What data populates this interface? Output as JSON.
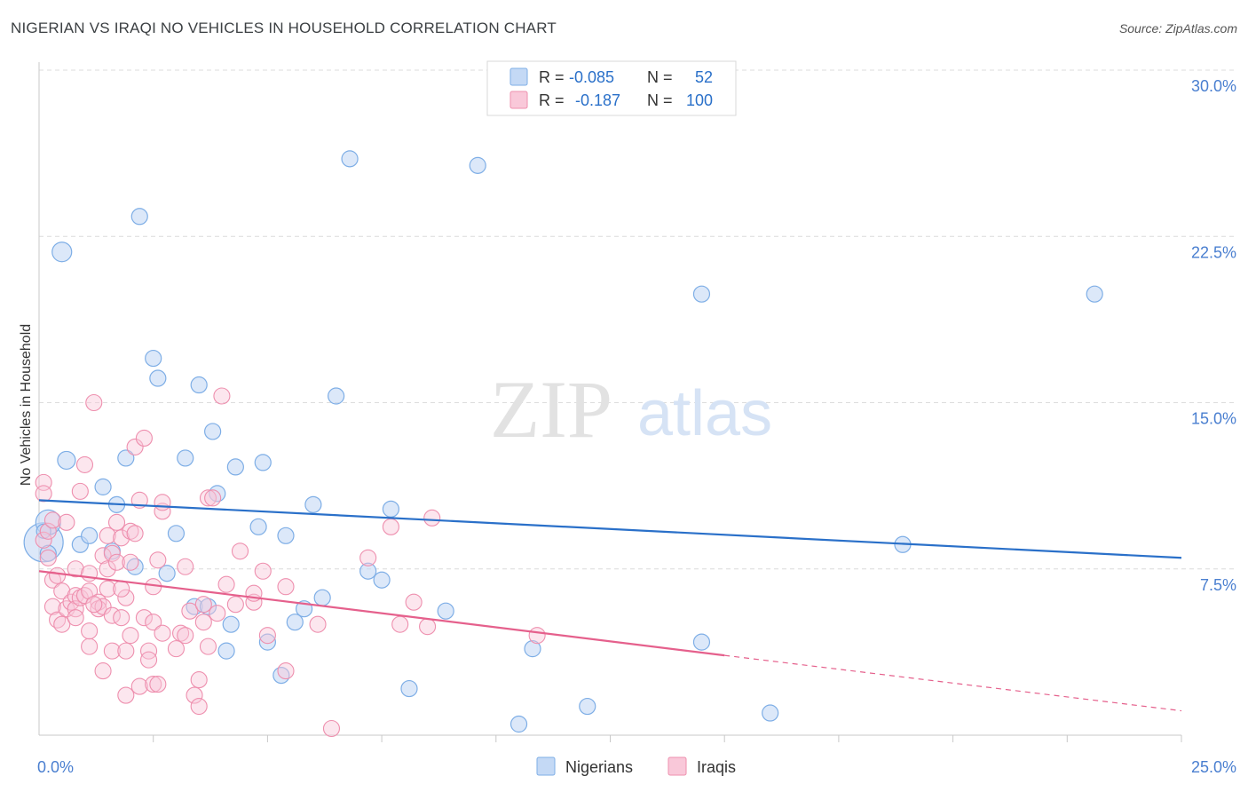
{
  "title": "NIGERIAN VS IRAQI NO VEHICLES IN HOUSEHOLD CORRELATION CHART",
  "source": "Source: ZipAtlas.com",
  "watermark": {
    "zip": "ZIP",
    "atlas": "atlas"
  },
  "colors": {
    "blue": "#7eaee6",
    "blue_fill": "#c4d9f5",
    "blue_line": "#2a70c9",
    "pink": "#ee8fae",
    "pink_fill": "#f9c8d9",
    "pink_line": "#e5608c",
    "tick_text": "#4a7fd0",
    "grid": "#dcdcdc"
  },
  "chart_data": {
    "type": "scatter",
    "title": "NIGERIAN VS IRAQI NO VEHICLES IN HOUSEHOLD CORRELATION CHART",
    "xlabel": "",
    "ylabel": "No Vehicles in Household",
    "xlim": [
      0,
      25
    ],
    "ylim": [
      0,
      31
    ],
    "x_tick_labels": [
      {
        "value": 0,
        "label": "0.0%"
      },
      {
        "value": 25,
        "label": "25.0%"
      }
    ],
    "y_ticks": [
      {
        "value": 7.5,
        "label": "7.5%"
      },
      {
        "value": 15,
        "label": "15.0%"
      },
      {
        "value": 22.5,
        "label": "22.5%"
      },
      {
        "value": 30,
        "label": "30.0%"
      }
    ],
    "x_minor_ticks": [
      2.5,
      5,
      7.5,
      10,
      12.5,
      15,
      17.5,
      20,
      22.5,
      25
    ],
    "legend": {
      "position": "top-center",
      "rows": [
        {
          "series": "Nigerians",
          "r_label": "R =",
          "r_value": "-0.085",
          "n_label": "N =",
          "n_value": "52"
        },
        {
          "series": "Iraqis",
          "r_label": "R =",
          "r_value": "-0.187",
          "n_label": "N =",
          "n_value": "100"
        }
      ]
    },
    "bottom_legend": [
      "Nigerians",
      "Iraqis"
    ],
    "series": [
      {
        "name": "Nigerians",
        "trend": {
          "x0": 0,
          "y0": 10.6,
          "x1": 25,
          "y1": 8.0
        },
        "points": [
          [
            0.1,
            8.7,
            22
          ],
          [
            0.2,
            9.6,
            14
          ],
          [
            0.2,
            8.2,
            9
          ],
          [
            0.1,
            9.2,
            8
          ],
          [
            0.5,
            21.8,
            11
          ],
          [
            0.6,
            12.4,
            10
          ],
          [
            0.9,
            8.6,
            9
          ],
          [
            1.1,
            9.0,
            9
          ],
          [
            1.4,
            11.2,
            9
          ],
          [
            1.6,
            8.3,
            9
          ],
          [
            1.7,
            10.4,
            9
          ],
          [
            1.9,
            12.5,
            9
          ],
          [
            2.1,
            7.6,
            9
          ],
          [
            2.2,
            23.4,
            9
          ],
          [
            2.5,
            17.0,
            9
          ],
          [
            2.6,
            16.1,
            9
          ],
          [
            2.8,
            7.3,
            9
          ],
          [
            3.0,
            9.1,
            9
          ],
          [
            3.2,
            12.5,
            9
          ],
          [
            3.4,
            5.8,
            9
          ],
          [
            3.5,
            15.8,
            9
          ],
          [
            3.7,
            5.8,
            9
          ],
          [
            3.8,
            13.7,
            9
          ],
          [
            3.9,
            10.9,
            9
          ],
          [
            4.1,
            3.8,
            9
          ],
          [
            4.2,
            5.0,
            9
          ],
          [
            4.3,
            12.1,
            9
          ],
          [
            4.8,
            9.4,
            9
          ],
          [
            4.9,
            12.3,
            9
          ],
          [
            5.0,
            4.2,
            9
          ],
          [
            5.3,
            2.7,
            9
          ],
          [
            5.4,
            9.0,
            9
          ],
          [
            5.6,
            5.1,
            9
          ],
          [
            5.8,
            5.7,
            9
          ],
          [
            6.0,
            10.4,
            9
          ],
          [
            6.2,
            6.2,
            9
          ],
          [
            6.5,
            15.3,
            9
          ],
          [
            6.8,
            26.0,
            9
          ],
          [
            7.2,
            7.4,
            9
          ],
          [
            7.5,
            7.0,
            9
          ],
          [
            7.7,
            10.2,
            9
          ],
          [
            8.1,
            2.1,
            9
          ],
          [
            8.9,
            5.6,
            9
          ],
          [
            9.6,
            25.7,
            9
          ],
          [
            10.5,
            0.5,
            9
          ],
          [
            10.8,
            3.9,
            9
          ],
          [
            12.0,
            1.3,
            9
          ],
          [
            14.5,
            4.2,
            9
          ],
          [
            14.5,
            19.9,
            9
          ],
          [
            16.0,
            1.0,
            9
          ],
          [
            18.9,
            8.6,
            9
          ],
          [
            23.1,
            19.9,
            9
          ]
        ]
      },
      {
        "name": "Iraqis",
        "trend": {
          "x0": 0,
          "y0": 7.4,
          "x1": 15,
          "y1": 3.6
        },
        "trend_dashed": {
          "x0": 15,
          "y0": 3.6,
          "x1": 25,
          "y1": 1.1
        },
        "points": [
          [
            0.1,
            11.4,
            9
          ],
          [
            0.1,
            10.9,
            9
          ],
          [
            0.1,
            8.8,
            9
          ],
          [
            0.2,
            9.2,
            9
          ],
          [
            0.2,
            8.0,
            9
          ],
          [
            0.3,
            9.7,
            9
          ],
          [
            0.3,
            7.0,
            9
          ],
          [
            0.3,
            5.8,
            9
          ],
          [
            0.4,
            5.2,
            9
          ],
          [
            0.4,
            7.2,
            9
          ],
          [
            0.5,
            5.0,
            9
          ],
          [
            0.5,
            6.5,
            9
          ],
          [
            0.6,
            9.6,
            9
          ],
          [
            0.6,
            5.7,
            9
          ],
          [
            0.7,
            6.0,
            9
          ],
          [
            0.8,
            7.5,
            9
          ],
          [
            0.8,
            6.3,
            9
          ],
          [
            0.8,
            5.7,
            9
          ],
          [
            0.9,
            11.0,
            9
          ],
          [
            0.9,
            6.2,
            9
          ],
          [
            1.0,
            12.2,
            9
          ],
          [
            1.0,
            6.3,
            9
          ],
          [
            1.1,
            7.3,
            9
          ],
          [
            1.1,
            4.0,
            9
          ],
          [
            1.1,
            4.7,
            9
          ],
          [
            1.1,
            6.5,
            9
          ],
          [
            1.2,
            15.0,
            9
          ],
          [
            1.3,
            6.0,
            9
          ],
          [
            1.3,
            5.7,
            9
          ],
          [
            1.4,
            5.8,
            9
          ],
          [
            1.4,
            8.1,
            9
          ],
          [
            1.4,
            2.9,
            9
          ],
          [
            1.5,
            9.0,
            9
          ],
          [
            1.5,
            7.5,
            9
          ],
          [
            1.5,
            6.6,
            9
          ],
          [
            1.6,
            8.2,
            9
          ],
          [
            1.6,
            5.4,
            9
          ],
          [
            1.6,
            3.8,
            9
          ],
          [
            1.7,
            7.8,
            9
          ],
          [
            1.7,
            9.6,
            9
          ],
          [
            1.8,
            8.9,
            9
          ],
          [
            1.8,
            5.3,
            9
          ],
          [
            1.9,
            6.2,
            9
          ],
          [
            1.9,
            3.8,
            9
          ],
          [
            1.9,
            1.8,
            9
          ],
          [
            2.0,
            9.2,
            9
          ],
          [
            2.0,
            7.8,
            9
          ],
          [
            2.0,
            4.5,
            9
          ],
          [
            2.1,
            9.1,
            9
          ],
          [
            2.1,
            13.0,
            9
          ],
          [
            2.2,
            10.6,
            9
          ],
          [
            2.2,
            2.2,
            9
          ],
          [
            2.3,
            5.3,
            9
          ],
          [
            2.3,
            13.4,
            9
          ],
          [
            2.4,
            3.8,
            9
          ],
          [
            2.4,
            3.4,
            9
          ],
          [
            2.5,
            6.7,
            9
          ],
          [
            2.5,
            2.3,
            9
          ],
          [
            2.5,
            5.1,
            9
          ],
          [
            2.6,
            7.9,
            9
          ],
          [
            2.6,
            2.3,
            9
          ],
          [
            2.7,
            10.1,
            9
          ],
          [
            2.7,
            10.5,
            9
          ],
          [
            2.7,
            4.6,
            9
          ],
          [
            3.0,
            3.9,
            9
          ],
          [
            3.1,
            4.6,
            9
          ],
          [
            3.2,
            4.5,
            9
          ],
          [
            3.2,
            7.6,
            9
          ],
          [
            3.3,
            5.6,
            9
          ],
          [
            3.4,
            1.8,
            9
          ],
          [
            3.5,
            2.5,
            9
          ],
          [
            3.5,
            1.3,
            9
          ],
          [
            3.6,
            5.1,
            9
          ],
          [
            3.6,
            5.9,
            9
          ],
          [
            3.7,
            4.0,
            9
          ],
          [
            3.7,
            10.7,
            9
          ],
          [
            3.8,
            10.7,
            9
          ],
          [
            4.0,
            15.3,
            9
          ],
          [
            4.1,
            6.8,
            9
          ],
          [
            4.3,
            5.9,
            9
          ],
          [
            4.4,
            8.3,
            9
          ],
          [
            4.7,
            6.0,
            9
          ],
          [
            4.7,
            6.4,
            9
          ],
          [
            4.9,
            7.4,
            9
          ],
          [
            5.0,
            4.5,
            9
          ],
          [
            5.4,
            2.9,
            9
          ],
          [
            5.4,
            6.7,
            9
          ],
          [
            6.1,
            5.0,
            9
          ],
          [
            6.4,
            0.3,
            9
          ],
          [
            7.2,
            8.0,
            9
          ],
          [
            7.7,
            9.4,
            9
          ],
          [
            7.9,
            5.0,
            9
          ],
          [
            8.2,
            6.0,
            9
          ],
          [
            8.5,
            4.9,
            9
          ],
          [
            8.6,
            9.8,
            9
          ],
          [
            10.9,
            4.5,
            9
          ],
          [
            0.8,
            5.3,
            9
          ],
          [
            1.2,
            5.9,
            9
          ],
          [
            1.8,
            6.6,
            9
          ],
          [
            3.9,
            5.5,
            9
          ]
        ]
      }
    ]
  }
}
